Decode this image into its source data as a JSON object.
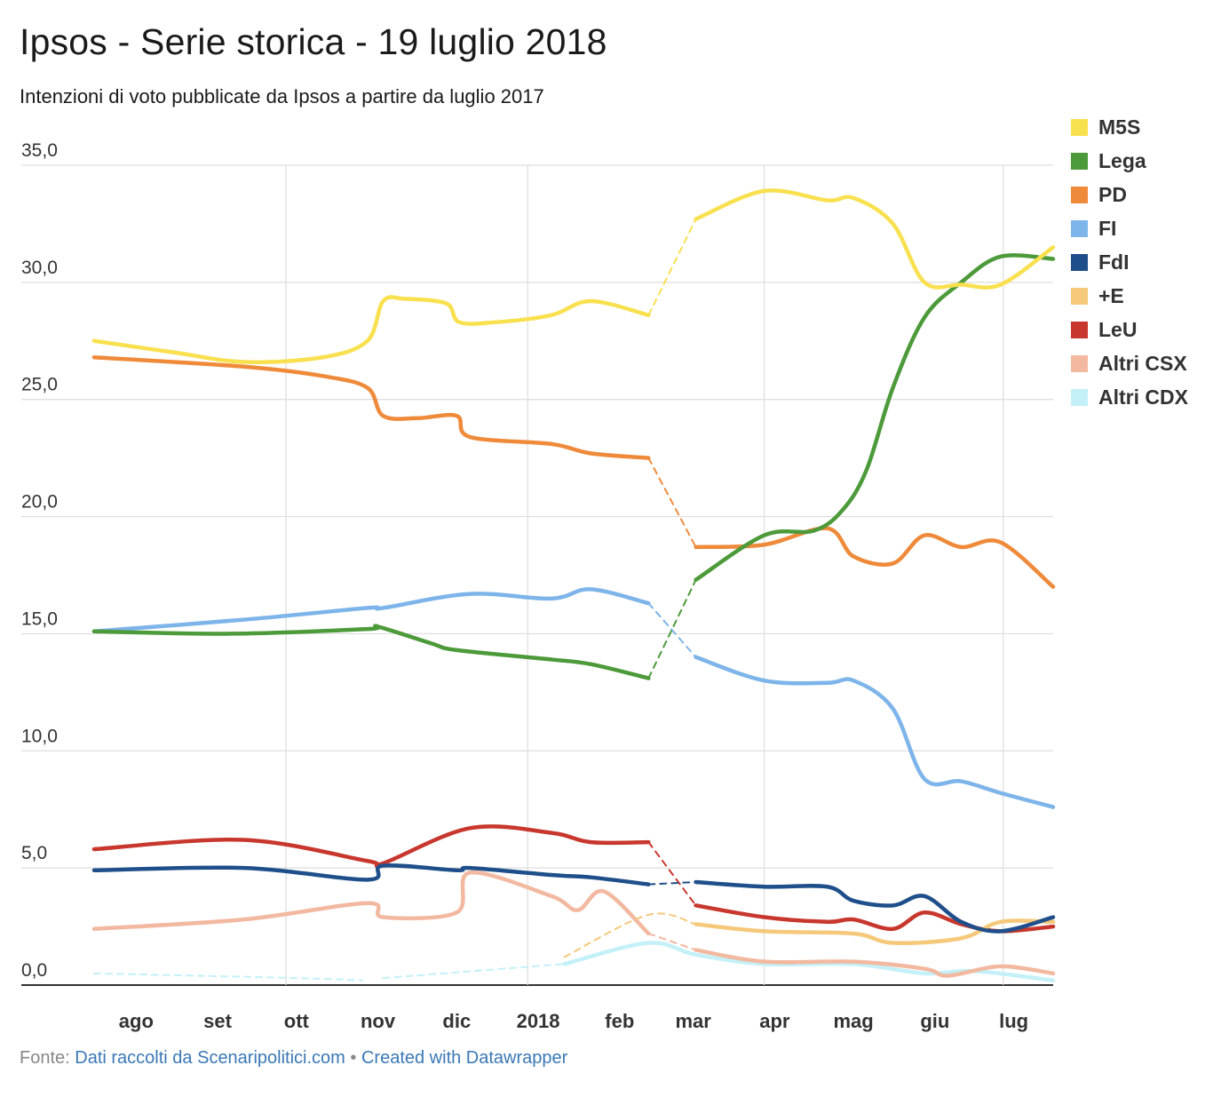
{
  "header": {
    "title": "Ipsos - Serie storica - 19 luglio 2018",
    "subtitle": "Intenzioni di voto pubblicate da Ipsos a partire da luglio 2017"
  },
  "footer": {
    "prefix": "Fonte:",
    "source": "Dati raccolti da Scenaripolitici.com",
    "separator": "•",
    "credit": "Created with Datawrapper"
  },
  "chart_data": {
    "type": "line",
    "title": "Ipsos - Serie storica - 19 luglio 2018",
    "subtitle": "Intenzioni di voto pubblicate da Ipsos a partire da luglio 2017",
    "xlabel": "",
    "ylabel": "",
    "ylim": [
      0,
      35
    ],
    "xlim": [
      "2017-07-20",
      "2018-07-20"
    ],
    "y_ticks": [
      "0,0",
      "5,0",
      "10,0",
      "15,0",
      "20,0",
      "25,0",
      "30,0",
      "35,0"
    ],
    "x_ticks": [
      {
        "date": "2017-08-05",
        "label": "ago"
      },
      {
        "date": "2017-09-05",
        "label": "set"
      },
      {
        "date": "2017-10-05",
        "label": "ott"
      },
      {
        "date": "2017-11-05",
        "label": "nov"
      },
      {
        "date": "2017-12-05",
        "label": "dic"
      },
      {
        "date": "2018-01-05",
        "label": "2018"
      },
      {
        "date": "2018-02-05",
        "label": "feb"
      },
      {
        "date": "2018-03-05",
        "label": "mar"
      },
      {
        "date": "2018-04-05",
        "label": "apr"
      },
      {
        "date": "2018-05-05",
        "label": "mag"
      },
      {
        "date": "2018-06-05",
        "label": "giu"
      },
      {
        "date": "2018-07-05",
        "label": "lug"
      }
    ],
    "gridlines": [
      "2017-10-01",
      "2018-01-01",
      "2018-04-01",
      "2018-07-01"
    ],
    "grid": true,
    "legend_position": "right",
    "series": [
      {
        "name": "M5S",
        "color": "#f9e04f",
        "segments": [
          {
            "dashed": false,
            "points": [
              [
                "2017-07-20",
                27.5
              ],
              [
                "2017-08-20",
                27.0
              ],
              [
                "2017-09-15",
                26.6
              ],
              [
                "2017-10-15",
                26.8
              ],
              [
                "2017-11-01",
                27.5
              ],
              [
                "2017-11-07",
                29.2
              ],
              [
                "2017-11-15",
                29.3
              ],
              [
                "2017-12-01",
                29.1
              ],
              [
                "2017-12-06",
                28.3
              ],
              [
                "2017-12-20",
                28.3
              ],
              [
                "2018-01-10",
                28.6
              ],
              [
                "2018-01-25",
                29.2
              ],
              [
                "2018-02-16",
                28.6
              ]
            ]
          },
          {
            "dashed": true,
            "points": [
              [
                "2018-02-16",
                28.6
              ],
              [
                "2018-03-06",
                32.7
              ]
            ]
          },
          {
            "dashed": false,
            "points": [
              [
                "2018-03-06",
                32.7
              ],
              [
                "2018-04-01",
                33.9
              ],
              [
                "2018-04-25",
                33.5
              ],
              [
                "2018-05-05",
                33.6
              ],
              [
                "2018-05-20",
                32.5
              ],
              [
                "2018-06-01",
                30.0
              ],
              [
                "2018-06-15",
                29.9
              ],
              [
                "2018-06-30",
                29.9
              ],
              [
                "2018-07-20",
                31.5
              ]
            ]
          }
        ]
      },
      {
        "name": "Lega",
        "color": "#4c9a3a",
        "segments": [
          {
            "dashed": false,
            "points": [
              [
                "2017-07-20",
                15.1
              ],
              [
                "2017-09-10",
                15.0
              ],
              [
                "2017-11-01",
                15.2
              ],
              [
                "2017-11-05",
                15.3
              ],
              [
                "2017-11-25",
                14.6
              ],
              [
                "2017-12-05",
                14.3
              ],
              [
                "2018-01-10",
                13.9
              ],
              [
                "2018-01-25",
                13.7
              ],
              [
                "2018-02-16",
                13.1
              ]
            ]
          },
          {
            "dashed": true,
            "points": [
              [
                "2018-02-16",
                13.1
              ],
              [
                "2018-03-06",
                17.3
              ]
            ]
          },
          {
            "dashed": false,
            "points": [
              [
                "2018-03-06",
                17.3
              ],
              [
                "2018-04-01",
                19.2
              ],
              [
                "2018-04-20",
                19.4
              ],
              [
                "2018-05-01",
                20.3
              ],
              [
                "2018-05-10",
                22.0
              ],
              [
                "2018-05-20",
                25.5
              ],
              [
                "2018-06-01",
                28.5
              ],
              [
                "2018-06-15",
                30.0
              ],
              [
                "2018-06-30",
                31.1
              ],
              [
                "2018-07-20",
                31.0
              ]
            ]
          }
        ]
      },
      {
        "name": "PD",
        "color": "#ef8a3a",
        "segments": [
          {
            "dashed": false,
            "points": [
              [
                "2017-07-20",
                26.8
              ],
              [
                "2017-09-15",
                26.4
              ],
              [
                "2017-10-15",
                26.0
              ],
              [
                "2017-11-01",
                25.5
              ],
              [
                "2017-11-07",
                24.3
              ],
              [
                "2017-11-20",
                24.2
              ],
              [
                "2017-12-05",
                24.3
              ],
              [
                "2017-12-10",
                23.4
              ],
              [
                "2018-01-10",
                23.1
              ],
              [
                "2018-01-25",
                22.7
              ],
              [
                "2018-02-16",
                22.5
              ]
            ]
          },
          {
            "dashed": true,
            "points": [
              [
                "2018-02-16",
                22.5
              ],
              [
                "2018-03-06",
                18.7
              ]
            ]
          },
          {
            "dashed": false,
            "points": [
              [
                "2018-03-06",
                18.7
              ],
              [
                "2018-04-01",
                18.8
              ],
              [
                "2018-04-25",
                19.5
              ],
              [
                "2018-05-05",
                18.3
              ],
              [
                "2018-05-20",
                18.0
              ],
              [
                "2018-06-01",
                19.2
              ],
              [
                "2018-06-15",
                18.7
              ],
              [
                "2018-06-30",
                18.9
              ],
              [
                "2018-07-20",
                17.0
              ]
            ]
          }
        ]
      },
      {
        "name": "FI",
        "color": "#7db4ea",
        "segments": [
          {
            "dashed": false,
            "points": [
              [
                "2017-07-20",
                15.1
              ],
              [
                "2017-09-15",
                15.6
              ],
              [
                "2017-11-01",
                16.1
              ],
              [
                "2017-11-07",
                16.1
              ],
              [
                "2017-12-10",
                16.7
              ],
              [
                "2018-01-10",
                16.5
              ],
              [
                "2018-01-25",
                16.9
              ],
              [
                "2018-02-16",
                16.3
              ]
            ]
          },
          {
            "dashed": true,
            "points": [
              [
                "2018-02-16",
                16.3
              ],
              [
                "2018-03-06",
                14.0
              ]
            ]
          },
          {
            "dashed": false,
            "points": [
              [
                "2018-03-06",
                14.0
              ],
              [
                "2018-04-01",
                13.0
              ],
              [
                "2018-04-25",
                12.9
              ],
              [
                "2018-05-05",
                13.0
              ],
              [
                "2018-05-20",
                11.8
              ],
              [
                "2018-06-01",
                8.8
              ],
              [
                "2018-06-15",
                8.7
              ],
              [
                "2018-06-30",
                8.2
              ],
              [
                "2018-07-20",
                7.6
              ]
            ]
          }
        ]
      },
      {
        "name": "FdI",
        "color": "#1f4f8a",
        "segments": [
          {
            "dashed": false,
            "points": [
              [
                "2017-07-20",
                4.9
              ],
              [
                "2017-09-15",
                5.0
              ],
              [
                "2017-11-01",
                4.5
              ],
              [
                "2017-11-07",
                5.1
              ],
              [
                "2017-12-05",
                4.9
              ],
              [
                "2017-12-10",
                5.0
              ],
              [
                "2018-01-10",
                4.7
              ],
              [
                "2018-01-25",
                4.6
              ],
              [
                "2018-02-16",
                4.3
              ]
            ]
          },
          {
            "dashed": true,
            "points": [
              [
                "2018-02-16",
                4.3
              ],
              [
                "2018-03-06",
                4.4
              ]
            ]
          },
          {
            "dashed": false,
            "points": [
              [
                "2018-03-06",
                4.4
              ],
              [
                "2018-04-01",
                4.2
              ],
              [
                "2018-04-25",
                4.2
              ],
              [
                "2018-05-05",
                3.6
              ],
              [
                "2018-05-20",
                3.4
              ],
              [
                "2018-06-01",
                3.8
              ],
              [
                "2018-06-15",
                2.7
              ],
              [
                "2018-06-30",
                2.3
              ],
              [
                "2018-07-20",
                2.9
              ]
            ]
          }
        ]
      },
      {
        "name": "+E",
        "color": "#f5c87a",
        "segments": [
          {
            "dashed": true,
            "points": [
              [
                "2018-01-15",
                1.2
              ],
              [
                "2018-02-16",
                3.0
              ],
              [
                "2018-03-06",
                2.6
              ]
            ]
          },
          {
            "dashed": false,
            "points": [
              [
                "2018-03-06",
                2.6
              ],
              [
                "2018-04-01",
                2.3
              ],
              [
                "2018-05-05",
                2.2
              ],
              [
                "2018-05-20",
                1.8
              ],
              [
                "2018-06-15",
                2.0
              ],
              [
                "2018-06-30",
                2.7
              ],
              [
                "2018-07-20",
                2.7
              ]
            ]
          }
        ]
      },
      {
        "name": "LeU",
        "color": "#c8372d",
        "segments": [
          {
            "dashed": false,
            "points": [
              [
                "2017-07-20",
                5.8
              ],
              [
                "2017-09-15",
                6.2
              ],
              [
                "2017-11-01",
                5.3
              ],
              [
                "2017-11-07",
                5.2
              ],
              [
                "2017-12-10",
                6.7
              ],
              [
                "2018-01-10",
                6.5
              ],
              [
                "2018-01-25",
                6.1
              ],
              [
                "2018-02-16",
                6.1
              ]
            ]
          },
          {
            "dashed": true,
            "points": [
              [
                "2018-02-16",
                6.1
              ],
              [
                "2018-03-06",
                3.4
              ]
            ]
          },
          {
            "dashed": false,
            "points": [
              [
                "2018-03-06",
                3.4
              ],
              [
                "2018-04-01",
                2.9
              ],
              [
                "2018-04-25",
                2.7
              ],
              [
                "2018-05-05",
                2.8
              ],
              [
                "2018-05-20",
                2.4
              ],
              [
                "2018-06-01",
                3.1
              ],
              [
                "2018-06-15",
                2.6
              ],
              [
                "2018-06-30",
                2.3
              ],
              [
                "2018-07-20",
                2.5
              ]
            ]
          }
        ]
      },
      {
        "name": "Altri CSX",
        "color": "#f2b8a0",
        "segments": [
          {
            "dashed": false,
            "points": [
              [
                "2017-07-20",
                2.4
              ],
              [
                "2017-09-15",
                2.8
              ],
              [
                "2017-11-01",
                3.5
              ],
              [
                "2017-11-07",
                2.9
              ],
              [
                "2017-12-05",
                3.1
              ],
              [
                "2017-12-10",
                4.8
              ],
              [
                "2018-01-10",
                3.8
              ],
              [
                "2018-01-20",
                3.2
              ],
              [
                "2018-01-30",
                4.0
              ],
              [
                "2018-02-16",
                2.2
              ]
            ]
          },
          {
            "dashed": true,
            "points": [
              [
                "2018-02-16",
                2.2
              ],
              [
                "2018-03-06",
                1.5
              ]
            ]
          },
          {
            "dashed": false,
            "points": [
              [
                "2018-03-06",
                1.5
              ],
              [
                "2018-04-01",
                1.0
              ],
              [
                "2018-05-05",
                1.0
              ],
              [
                "2018-06-01",
                0.7
              ],
              [
                "2018-06-10",
                0.4
              ],
              [
                "2018-06-30",
                0.8
              ],
              [
                "2018-07-20",
                0.5
              ]
            ]
          }
        ]
      },
      {
        "name": "Altri CDX",
        "color": "#c4f0f8",
        "segments": [
          {
            "dashed": true,
            "points": [
              [
                "2017-07-20",
                0.5
              ],
              [
                "2017-10-05",
                0.3
              ],
              [
                "2017-10-30",
                0.2
              ]
            ]
          },
          {
            "dashed": true,
            "points": [
              [
                "2017-11-07",
                0.3
              ],
              [
                "2018-01-15",
                0.9
              ]
            ]
          },
          {
            "dashed": false,
            "points": [
              [
                "2018-01-15",
                0.9
              ],
              [
                "2018-02-16",
                1.8
              ],
              [
                "2018-03-06",
                1.3
              ],
              [
                "2018-04-01",
                0.9
              ],
              [
                "2018-05-05",
                0.9
              ],
              [
                "2018-06-01",
                0.5
              ],
              [
                "2018-06-20",
                0.6
              ],
              [
                "2018-07-20",
                0.2
              ]
            ]
          }
        ]
      }
    ]
  }
}
